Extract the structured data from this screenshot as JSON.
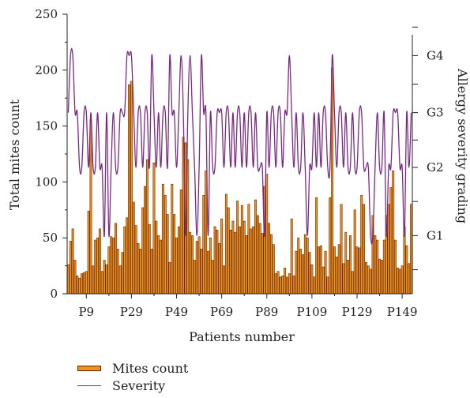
{
  "chart_data": {
    "type": "bar",
    "xlabel": "Patients number",
    "ylabel": "Total mites count",
    "y2label": "Allergy severity grading",
    "ylim": [
      0,
      250
    ],
    "yticks": [
      0,
      50,
      100,
      150,
      200,
      250
    ],
    "y2_categories": [
      "G1",
      "G2",
      "G3",
      "G4"
    ],
    "y2_values_on_left_axis": [
      52,
      113,
      162,
      213
    ],
    "x_ticks": [
      {
        "label": "P9",
        "patient": 9
      },
      {
        "label": "P29",
        "patient": 29
      },
      {
        "label": "P49",
        "patient": 49
      },
      {
        "label": "P69",
        "patient": 69
      },
      {
        "label": "P89",
        "patient": 89
      },
      {
        "label": "P109",
        "patient": 109
      },
      {
        "label": "P129",
        "patient": 129
      },
      {
        "label": "P149",
        "patient": 149
      }
    ],
    "patient_count": 153,
    "series": [
      {
        "name": "Mites count",
        "kind": "bar",
        "color": "#f7901e",
        "edge_color": "#5a2a00",
        "values": [
          26,
          47,
          58,
          30,
          16,
          14,
          18,
          19,
          20,
          74,
          155,
          25,
          48,
          50,
          58,
          20,
          30,
          26,
          42,
          51,
          50,
          63,
          40,
          25,
          37,
          60,
          68,
          187,
          190,
          82,
          61,
          45,
          40,
          77,
          96,
          120,
          62,
          40,
          117,
          65,
          52,
          48,
          98,
          88,
          71,
          28,
          98,
          71,
          50,
          60,
          93,
          140,
          135,
          120,
          55,
          52,
          30,
          47,
          51,
          40,
          88,
          110,
          38,
          50,
          30,
          60,
          57,
          45,
          67,
          25,
          89,
          77,
          57,
          65,
          55,
          83,
          60,
          79,
          65,
          52,
          80,
          58,
          60,
          84,
          70,
          63,
          54,
          96,
          107,
          63,
          53,
          44,
          18,
          20,
          15,
          16,
          23,
          15,
          18,
          67,
          16,
          38,
          50,
          40,
          35,
          53,
          50,
          37,
          26,
          15,
          86,
          42,
          43,
          24,
          38,
          15,
          86,
          202,
          42,
          33,
          44,
          80,
          27,
          55,
          30,
          52,
          20,
          75,
          42,
          41,
          88,
          80,
          28,
          25,
          22,
          70,
          52,
          48,
          31,
          30,
          48,
          70,
          80,
          95,
          110,
          48,
          23,
          22,
          25,
          60,
          43,
          27,
          80
        ],
        "approximate": true
      },
      {
        "name": "Severity",
        "kind": "line",
        "color": "#7b2a84",
        "values": [
          3,
          4,
          4,
          3,
          3,
          2,
          2,
          3,
          3,
          2,
          3,
          2,
          2,
          3,
          2,
          2,
          1,
          3,
          1,
          2,
          3,
          2,
          2,
          3,
          3,
          3,
          4,
          4,
          4,
          3,
          2,
          3,
          3,
          2,
          3,
          3,
          2,
          4,
          3,
          2,
          3,
          2,
          3,
          3,
          2,
          4,
          3,
          3,
          2,
          3,
          4,
          3,
          1,
          3,
          4,
          3,
          2,
          1,
          2,
          4,
          3,
          3,
          1,
          3,
          2,
          2,
          3,
          3,
          3,
          2,
          3,
          3,
          2,
          3,
          2,
          3,
          3,
          2,
          3,
          2,
          3,
          3,
          2,
          3,
          2,
          2,
          2,
          1,
          3,
          2,
          3,
          3,
          2,
          3,
          3,
          2,
          3,
          3,
          4,
          3,
          2,
          3,
          2,
          2,
          3,
          2,
          1,
          2,
          2,
          3,
          2,
          3,
          2,
          3,
          3,
          2,
          2,
          4,
          3,
          2,
          3,
          3,
          2,
          3,
          2,
          2,
          3,
          2,
          2,
          3,
          3,
          2,
          2,
          2,
          1,
          1,
          2,
          3,
          2,
          2,
          3,
          1,
          2,
          2,
          3,
          3,
          3,
          2,
          2,
          1,
          3,
          2,
          3
        ],
        "approximate": true
      }
    ],
    "legend": {
      "placement": "bottom-left",
      "items": [
        {
          "label": "Mites count",
          "kind": "bar"
        },
        {
          "label": "Severity",
          "kind": "line"
        }
      ]
    },
    "grid": false
  }
}
